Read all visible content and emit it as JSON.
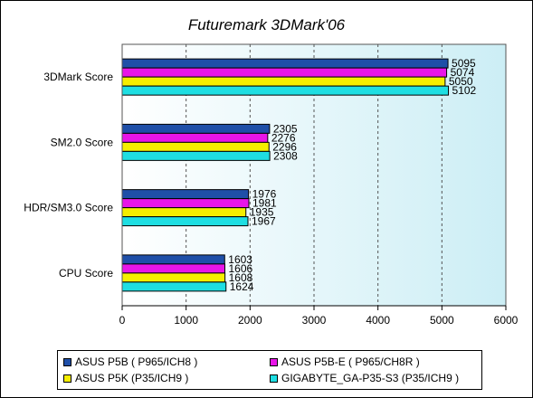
{
  "chart_data": {
    "type": "bar",
    "orientation": "horizontal",
    "title": "Futuremark 3DMark'06",
    "categories": [
      "3DMark Score",
      "SM2.0 Score",
      "HDR/SM3.0 Score",
      "CPU Score"
    ],
    "series": [
      {
        "name": "ASUS P5B ( P965/ICH8 )",
        "color": "#1f4fa8",
        "values": [
          5095,
          2305,
          1976,
          1603
        ]
      },
      {
        "name": "ASUS P5B-E ( P965/CH8R )",
        "color": "#e815e8",
        "values": [
          5074,
          2276,
          1981,
          1606
        ]
      },
      {
        "name": "ASUS P5K (P35/ICH9 )",
        "color": "#f5ee00",
        "values": [
          5050,
          2296,
          1935,
          1608
        ]
      },
      {
        "name": "GIGABYTE_GA-P35-S3 (P35/ICH9 )",
        "color": "#1edee2",
        "values": [
          5102,
          2308,
          1967,
          1624
        ]
      }
    ],
    "xlim": [
      0,
      6000
    ],
    "xticks": [
      "0",
      "1000",
      "2000",
      "3000",
      "4000",
      "5000",
      "6000"
    ],
    "grid": true,
    "legend_position": "bottom",
    "plot_background": "#cceef5"
  }
}
